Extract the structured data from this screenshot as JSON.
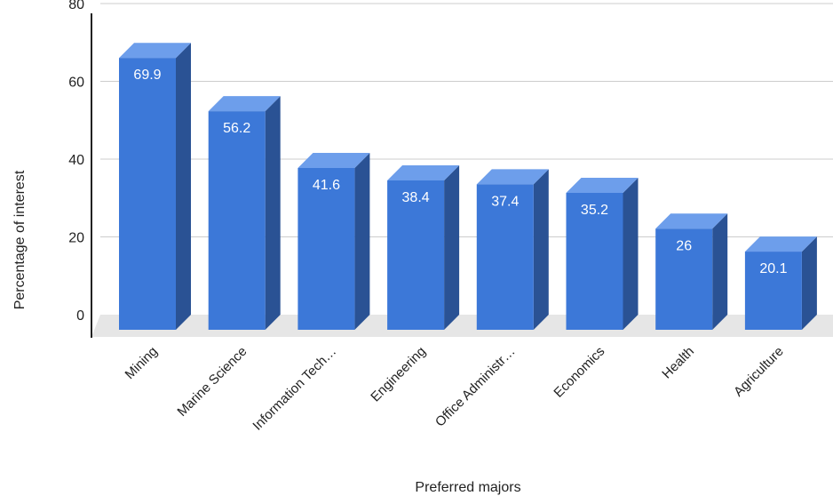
{
  "chart_data": {
    "type": "bar",
    "title": "",
    "xlabel": "Preferred majors",
    "ylabel": "Percentage of interest",
    "categories": [
      "Mining",
      "Marine Science",
      "Information Tech…",
      "Engineering",
      "Office Administr…",
      "Economics",
      "Health",
      "Agriculture"
    ],
    "values": [
      69.9,
      56.2,
      41.6,
      38.4,
      37.4,
      35.2,
      26,
      20.1
    ],
    "value_labels": [
      "69.9",
      "56.2",
      "41.6",
      "38.4",
      "37.4",
      "35.2",
      "26",
      "20.1"
    ],
    "yticks": [
      0,
      20,
      40,
      60,
      80
    ],
    "ylim": [
      0,
      80
    ],
    "grid": true,
    "legend": "none",
    "style": "3d-bar"
  },
  "colors": {
    "bar_front": "#3c78d8",
    "bar_top": "#6d9eeb",
    "bar_side": "#2a5294",
    "floor": "#e6e6e6",
    "grid": "#cccccc",
    "axis": "#222222"
  }
}
